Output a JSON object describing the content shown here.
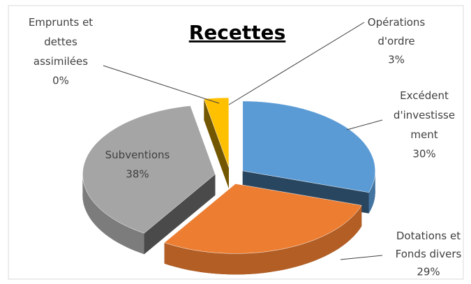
{
  "chart_data": {
    "type": "pie",
    "title": "Recettes",
    "series": [
      {
        "name": "Excédent d'investissement",
        "color": "#5b9bd5",
        "value": 30,
        "value_label": "30%"
      },
      {
        "name": "Dotations et Fonds divers",
        "color": "#ed7d31",
        "value": 29,
        "value_label": "29%"
      },
      {
        "name": "Subventions",
        "color": "#a5a5a5",
        "value": 38,
        "value_label": "38%"
      },
      {
        "name": "Opérations d'ordre",
        "color": "#ffc000",
        "value": 3,
        "value_label": "3%"
      },
      {
        "name": "Emprunts et dettes assimilées",
        "color": "#4472c4",
        "value": 0,
        "value_label": "0%"
      }
    ],
    "three_d": true,
    "exploded": true
  }
}
